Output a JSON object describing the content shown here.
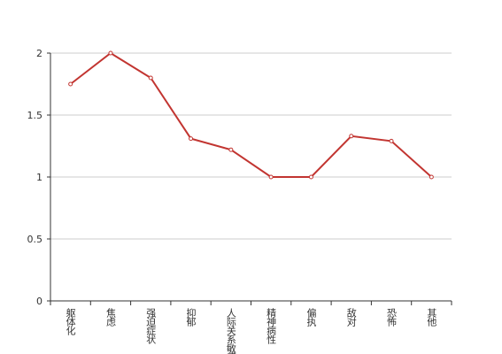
{
  "chart_data": {
    "type": "line",
    "categories": [
      "躯体化",
      "焦虑",
      "强迫症状",
      "抑郁",
      "人际关系敏感",
      "精神病性",
      "偏执",
      "敌对",
      "恐怖",
      "其他"
    ],
    "series": [
      {
        "color": "#c23531",
        "values": [
          1.75,
          2,
          1.8,
          1.31,
          1.22,
          1,
          1,
          1.33,
          1.29,
          1
        ]
      }
    ],
    "ylim": [
      0,
      2
    ],
    "yticks": [
      0,
      0.5,
      1,
      1.5,
      2
    ],
    "grid": true
  }
}
